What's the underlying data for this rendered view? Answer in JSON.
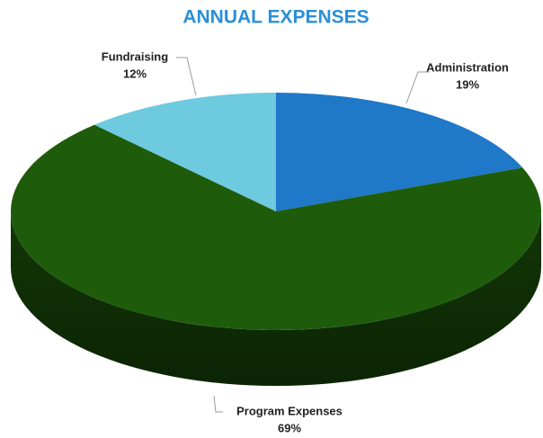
{
  "chart_data": {
    "type": "pie",
    "title": "ANNUAL EXPENSES",
    "categories": [
      "Administration",
      "Program Expenses",
      "Fundraising"
    ],
    "values": [
      19,
      69,
      12
    ],
    "value_labels": [
      "19%",
      "69%",
      "12%"
    ],
    "colors": [
      "#1f78c8",
      "#1e5c0b",
      "#6ecadf"
    ]
  }
}
